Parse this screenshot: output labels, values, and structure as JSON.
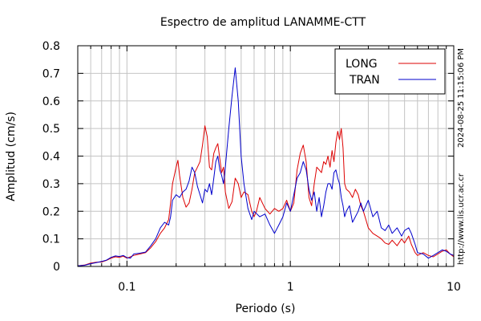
{
  "chart_data": {
    "type": "line",
    "title": "Espectro de amplitud LANAMME-CTT",
    "xlabel": "Periodo (s)",
    "ylabel": "Amplitud (cm/s)",
    "xscale": "log",
    "xlim": [
      0.05,
      10
    ],
    "ylim": [
      0,
      0.8
    ],
    "xticks": [
      {
        "value": 0.1,
        "label": "0.1"
      },
      {
        "value": 1,
        "label": "1"
      },
      {
        "value": 10,
        "label": "10"
      }
    ],
    "yticks": [
      {
        "value": 0,
        "label": "0"
      },
      {
        "value": 0.1,
        "label": "0.1"
      },
      {
        "value": 0.2,
        "label": "0.2"
      },
      {
        "value": 0.3,
        "label": "0.3"
      },
      {
        "value": 0.4,
        "label": "0.4"
      },
      {
        "value": 0.5,
        "label": "0.5"
      },
      {
        "value": 0.6,
        "label": "0.6"
      },
      {
        "value": 0.7,
        "label": "0.7"
      },
      {
        "value": 0.8,
        "label": "0.8"
      }
    ],
    "grid": true,
    "legend_position": "top-right",
    "timestamp": "2024-08-25 11:15:06 PM",
    "source_url": "http://www.lis.ucr.ac.cr",
    "series": [
      {
        "name": "LONG",
        "color": "#dd0000",
        "points": [
          [
            0.05,
            0.002
          ],
          [
            0.055,
            0.005
          ],
          [
            0.06,
            0.012
          ],
          [
            0.065,
            0.015
          ],
          [
            0.07,
            0.016
          ],
          [
            0.075,
            0.022
          ],
          [
            0.08,
            0.03
          ],
          [
            0.085,
            0.035
          ],
          [
            0.09,
            0.033
          ],
          [
            0.095,
            0.037
          ],
          [
            0.1,
            0.03
          ],
          [
            0.105,
            0.035
          ],
          [
            0.11,
            0.04
          ],
          [
            0.12,
            0.045
          ],
          [
            0.13,
            0.05
          ],
          [
            0.14,
            0.068
          ],
          [
            0.15,
            0.09
          ],
          [
            0.16,
            0.12
          ],
          [
            0.17,
            0.14
          ],
          [
            0.18,
            0.17
          ],
          [
            0.185,
            0.23
          ],
          [
            0.19,
            0.3
          ],
          [
            0.2,
            0.36
          ],
          [
            0.205,
            0.385
          ],
          [
            0.21,
            0.33
          ],
          [
            0.22,
            0.25
          ],
          [
            0.23,
            0.215
          ],
          [
            0.24,
            0.23
          ],
          [
            0.25,
            0.28
          ],
          [
            0.26,
            0.34
          ],
          [
            0.27,
            0.36
          ],
          [
            0.28,
            0.38
          ],
          [
            0.29,
            0.44
          ],
          [
            0.3,
            0.51
          ],
          [
            0.31,
            0.47
          ],
          [
            0.32,
            0.36
          ],
          [
            0.33,
            0.35
          ],
          [
            0.34,
            0.41
          ],
          [
            0.35,
            0.43
          ],
          [
            0.36,
            0.445
          ],
          [
            0.37,
            0.39
          ],
          [
            0.38,
            0.34
          ],
          [
            0.39,
            0.36
          ],
          [
            0.4,
            0.27
          ],
          [
            0.42,
            0.21
          ],
          [
            0.44,
            0.235
          ],
          [
            0.46,
            0.32
          ],
          [
            0.48,
            0.3
          ],
          [
            0.5,
            0.25
          ],
          [
            0.52,
            0.27
          ],
          [
            0.55,
            0.26
          ],
          [
            0.58,
            0.2
          ],
          [
            0.6,
            0.18
          ],
          [
            0.62,
            0.2
          ],
          [
            0.65,
            0.25
          ],
          [
            0.7,
            0.21
          ],
          [
            0.75,
            0.19
          ],
          [
            0.8,
            0.21
          ],
          [
            0.85,
            0.2
          ],
          [
            0.9,
            0.21
          ],
          [
            0.95,
            0.24
          ],
          [
            1.0,
            0.2
          ],
          [
            1.05,
            0.23
          ],
          [
            1.1,
            0.35
          ],
          [
            1.15,
            0.41
          ],
          [
            1.2,
            0.44
          ],
          [
            1.25,
            0.38
          ],
          [
            1.3,
            0.25
          ],
          [
            1.35,
            0.22
          ],
          [
            1.4,
            0.3
          ],
          [
            1.45,
            0.36
          ],
          [
            1.5,
            0.35
          ],
          [
            1.55,
            0.34
          ],
          [
            1.6,
            0.38
          ],
          [
            1.65,
            0.37
          ],
          [
            1.7,
            0.4
          ],
          [
            1.75,
            0.36
          ],
          [
            1.8,
            0.42
          ],
          [
            1.85,
            0.38
          ],
          [
            1.9,
            0.45
          ],
          [
            1.95,
            0.49
          ],
          [
            2.0,
            0.46
          ],
          [
            2.05,
            0.5
          ],
          [
            2.1,
            0.43
          ],
          [
            2.15,
            0.3
          ],
          [
            2.2,
            0.28
          ],
          [
            2.3,
            0.27
          ],
          [
            2.4,
            0.25
          ],
          [
            2.5,
            0.28
          ],
          [
            2.6,
            0.26
          ],
          [
            2.7,
            0.22
          ],
          [
            2.8,
            0.2
          ],
          [
            2.9,
            0.17
          ],
          [
            3.0,
            0.14
          ],
          [
            3.2,
            0.12
          ],
          [
            3.4,
            0.11
          ],
          [
            3.6,
            0.1
          ],
          [
            3.8,
            0.085
          ],
          [
            4.0,
            0.08
          ],
          [
            4.2,
            0.095
          ],
          [
            4.5,
            0.075
          ],
          [
            4.8,
            0.1
          ],
          [
            5.0,
            0.085
          ],
          [
            5.3,
            0.11
          ],
          [
            5.5,
            0.08
          ],
          [
            5.8,
            0.05
          ],
          [
            6.0,
            0.04
          ],
          [
            6.5,
            0.05
          ],
          [
            7.0,
            0.04
          ],
          [
            7.5,
            0.035
          ],
          [
            8.0,
            0.045
          ],
          [
            8.5,
            0.055
          ],
          [
            9.0,
            0.06
          ],
          [
            9.5,
            0.045
          ],
          [
            10.0,
            0.035
          ]
        ]
      },
      {
        "name": "TRAN",
        "color": "#0000cc",
        "points": [
          [
            0.05,
            0.002
          ],
          [
            0.055,
            0.004
          ],
          [
            0.06,
            0.01
          ],
          [
            0.065,
            0.014
          ],
          [
            0.07,
            0.018
          ],
          [
            0.075,
            0.023
          ],
          [
            0.08,
            0.033
          ],
          [
            0.085,
            0.038
          ],
          [
            0.09,
            0.036
          ],
          [
            0.095,
            0.04
          ],
          [
            0.1,
            0.032
          ],
          [
            0.105,
            0.03
          ],
          [
            0.11,
            0.045
          ],
          [
            0.12,
            0.048
          ],
          [
            0.13,
            0.052
          ],
          [
            0.14,
            0.075
          ],
          [
            0.15,
            0.1
          ],
          [
            0.16,
            0.14
          ],
          [
            0.17,
            0.16
          ],
          [
            0.18,
            0.15
          ],
          [
            0.185,
            0.18
          ],
          [
            0.19,
            0.24
          ],
          [
            0.2,
            0.26
          ],
          [
            0.21,
            0.25
          ],
          [
            0.22,
            0.27
          ],
          [
            0.23,
            0.28
          ],
          [
            0.24,
            0.31
          ],
          [
            0.25,
            0.36
          ],
          [
            0.26,
            0.34
          ],
          [
            0.27,
            0.29
          ],
          [
            0.28,
            0.26
          ],
          [
            0.29,
            0.23
          ],
          [
            0.3,
            0.28
          ],
          [
            0.31,
            0.27
          ],
          [
            0.32,
            0.3
          ],
          [
            0.33,
            0.26
          ],
          [
            0.34,
            0.32
          ],
          [
            0.35,
            0.38
          ],
          [
            0.36,
            0.4
          ],
          [
            0.37,
            0.35
          ],
          [
            0.38,
            0.33
          ],
          [
            0.39,
            0.3
          ],
          [
            0.4,
            0.36
          ],
          [
            0.42,
            0.5
          ],
          [
            0.44,
            0.62
          ],
          [
            0.46,
            0.72
          ],
          [
            0.48,
            0.6
          ],
          [
            0.5,
            0.4
          ],
          [
            0.52,
            0.3
          ],
          [
            0.55,
            0.21
          ],
          [
            0.58,
            0.17
          ],
          [
            0.6,
            0.2
          ],
          [
            0.65,
            0.18
          ],
          [
            0.7,
            0.19
          ],
          [
            0.75,
            0.15
          ],
          [
            0.8,
            0.12
          ],
          [
            0.85,
            0.15
          ],
          [
            0.9,
            0.18
          ],
          [
            0.95,
            0.23
          ],
          [
            1.0,
            0.2
          ],
          [
            1.05,
            0.26
          ],
          [
            1.1,
            0.32
          ],
          [
            1.15,
            0.34
          ],
          [
            1.2,
            0.38
          ],
          [
            1.25,
            0.35
          ],
          [
            1.3,
            0.28
          ],
          [
            1.35,
            0.24
          ],
          [
            1.4,
            0.27
          ],
          [
            1.45,
            0.2
          ],
          [
            1.5,
            0.25
          ],
          [
            1.55,
            0.18
          ],
          [
            1.6,
            0.22
          ],
          [
            1.65,
            0.27
          ],
          [
            1.7,
            0.3
          ],
          [
            1.75,
            0.3
          ],
          [
            1.8,
            0.28
          ],
          [
            1.85,
            0.34
          ],
          [
            1.9,
            0.35
          ],
          [
            1.95,
            0.32
          ],
          [
            2.0,
            0.3
          ],
          [
            2.05,
            0.25
          ],
          [
            2.1,
            0.22
          ],
          [
            2.15,
            0.18
          ],
          [
            2.2,
            0.2
          ],
          [
            2.3,
            0.22
          ],
          [
            2.4,
            0.16
          ],
          [
            2.5,
            0.18
          ],
          [
            2.6,
            0.2
          ],
          [
            2.7,
            0.23
          ],
          [
            2.8,
            0.2
          ],
          [
            2.9,
            0.22
          ],
          [
            3.0,
            0.24
          ],
          [
            3.2,
            0.18
          ],
          [
            3.4,
            0.2
          ],
          [
            3.6,
            0.14
          ],
          [
            3.8,
            0.13
          ],
          [
            4.0,
            0.15
          ],
          [
            4.2,
            0.12
          ],
          [
            4.5,
            0.14
          ],
          [
            4.8,
            0.11
          ],
          [
            5.0,
            0.13
          ],
          [
            5.3,
            0.14
          ],
          [
            5.5,
            0.12
          ],
          [
            5.8,
            0.08
          ],
          [
            6.0,
            0.05
          ],
          [
            6.5,
            0.045
          ],
          [
            7.0,
            0.03
          ],
          [
            7.5,
            0.04
          ],
          [
            8.0,
            0.05
          ],
          [
            8.5,
            0.06
          ],
          [
            9.0,
            0.055
          ],
          [
            9.5,
            0.045
          ],
          [
            10.0,
            0.04
          ]
        ]
      }
    ]
  }
}
